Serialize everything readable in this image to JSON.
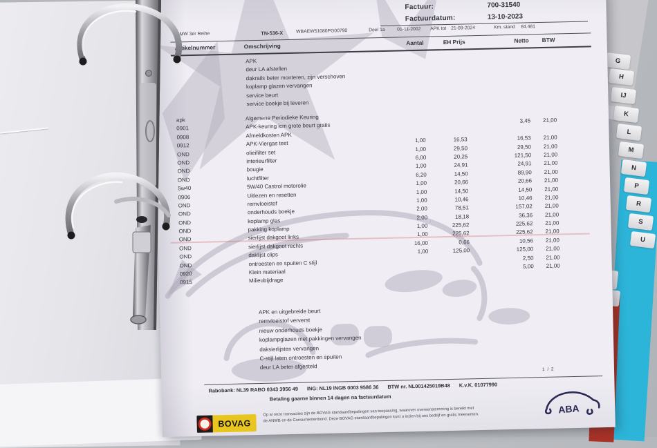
{
  "invoice": {
    "header": {
      "factuur_label": "Factuur:",
      "factuur_number": "700-31540",
      "factuurdatum_label": "Factuurdatum:",
      "factuurdatum": "13-10-2023"
    },
    "vehicle": {
      "model": "BMW 3er Reihe",
      "plate": "TN-536-X",
      "vin": "WBAEW51080PG00790",
      "deel_label": "Deel 1a",
      "deel_date": "01-11-2002",
      "apk_label": "APK tot",
      "apk_date": "21-09-2024",
      "km_label": "Km. stand",
      "km_value": "84.481"
    },
    "columns": {
      "artikelnummer": "Artikelnummer",
      "omschrijving": "Omschrijving",
      "aantal": "Aantal",
      "eh_prijs": "EH Prijs",
      "netto": "Netto",
      "btw": "BTW"
    },
    "intro_lines": [
      "APK",
      "deur LA afstellen",
      "dakrails beter monteren, zijn verschoven",
      "koplamp glazen vervangen",
      "service beurt",
      "service boekje bij leveren"
    ],
    "items": [
      {
        "nr": "apk",
        "desc": "Algemene Periodieke Keuring",
        "qty": "",
        "price": "",
        "netto": "",
        "btw": ""
      },
      {
        "nr": "0901",
        "desc": "APK-keuring icm grote beurt gratis",
        "qty": "",
        "price": "",
        "netto": "3,45",
        "btw": "21,00"
      },
      {
        "nr": "0908",
        "desc": "Afmeldkosten APK",
        "qty": "",
        "price": "",
        "netto": "",
        "btw": ""
      },
      {
        "nr": "0912",
        "desc": "APK-Viergas test",
        "qty": "1,00",
        "price": "16,53",
        "netto": "16,53",
        "btw": "21,00"
      },
      {
        "nr": "OND",
        "desc": "olieifilter set",
        "qty": "1,00",
        "price": "29,50",
        "netto": "29,50",
        "btw": "21,00"
      },
      {
        "nr": "OND",
        "desc": "interieurfilter",
        "qty": "6,00",
        "price": "20,25",
        "netto": "121,50",
        "btw": "21,00"
      },
      {
        "nr": "OND",
        "desc": "bougie",
        "qty": "1,00",
        "price": "24,91",
        "netto": "24,91",
        "btw": "21,00"
      },
      {
        "nr": "OND",
        "desc": "luchtfilter",
        "qty": "6,20",
        "price": "14,50",
        "netto": "89,90",
        "btw": "21,00"
      },
      {
        "nr": "5w40",
        "desc": "5W/40 Castrol motorolie",
        "qty": "1,00",
        "price": "20,66",
        "netto": "20,66",
        "btw": "21,00"
      },
      {
        "nr": "0906",
        "desc": "Uitlezen en resetten",
        "qty": "1,00",
        "price": "14,50",
        "netto": "14,50",
        "btw": "21,00"
      },
      {
        "nr": "OND",
        "desc": "remvloeistof",
        "qty": "1,00",
        "price": "10,46",
        "netto": "10,46",
        "btw": "21,00"
      },
      {
        "nr": "OND",
        "desc": "onderhouds boekje",
        "qty": "2,00",
        "price": "78,51",
        "netto": "157,02",
        "btw": "21,00"
      },
      {
        "nr": "OND",
        "desc": "koplamp glas",
        "qty": "2,00",
        "price": "18,18",
        "netto": "36,36",
        "btw": "21,00"
      },
      {
        "nr": "OND",
        "desc": "pakking koplamp",
        "qty": "1,00",
        "price": "225,62",
        "netto": "225,62",
        "btw": "21,00"
      },
      {
        "nr": "OND",
        "desc": "sierlijst dakgoot links",
        "qty": "1,00",
        "price": "225,62",
        "netto": "225,62",
        "btw": "21,00"
      },
      {
        "nr": "OND",
        "desc": "sierlijst dakgoot rechts",
        "qty": "16,00",
        "price": "0,66",
        "netto": "10,56",
        "btw": "21,00"
      },
      {
        "nr": "OND",
        "desc": "daklijst clips",
        "qty": "1,00",
        "price": "125,00",
        "netto": "125,00",
        "btw": "21,00"
      },
      {
        "nr": "OND",
        "desc": "ontroesten en spuiten C stijl",
        "qty": "",
        "price": "",
        "netto": "2,50",
        "btw": "21,00"
      },
      {
        "nr": "0920",
        "desc": "Klein materiaal",
        "qty": "",
        "price": "",
        "netto": "5,00",
        "btw": "21,00"
      },
      {
        "nr": "0915",
        "desc": "Milieubijdrage",
        "qty": "",
        "price": "",
        "netto": "",
        "btw": ""
      }
    ],
    "summary_lines": [
      "APK en uitgebreide beurt",
      "remvloeistof ververst",
      "nieuw onderhouds boekje",
      "koplampglazen met pakkingen vervangen",
      "daksierlijsten vervangen",
      "C-stijl laten ontroesten en spuiten",
      "deur LA beter afgesteld"
    ],
    "page_indicator": "1 / 2",
    "footer": {
      "bank_segments": [
        "Rabobank: NL39 RABO 0343 3956 49",
        "ING: NL19 INGB 0003 9586 36",
        "BTW nr. NL001425019B48",
        "K.v.K. 01077990"
      ],
      "payment_line": "Betaling gaarne binnen 14 dagen na factuurdatum",
      "bovag_label": "BOVAG",
      "terms_line1": "Op al onze transacties zijn de BOVAG standaardbepalingen van toepassing, waarover overeenstemming is bereikt met",
      "terms_line2": "de ANWB en de Consumentenbond. Deze BOVAG standaardbepalingen kunt u inzien bij ons bedrijf en gratis meenemen.",
      "aba_label": "ABA"
    },
    "tabs": [
      "G",
      "H",
      "IJ",
      "K",
      "L",
      "M",
      "N",
      "P",
      "R",
      "S",
      "U"
    ]
  },
  "colors": {
    "paper": "#f0eef4",
    "desk": "#b7babe",
    "ink": "#34343e",
    "watermark": "#aba7b7",
    "cyan_divider": "#2cb5d9",
    "red_divider": "#a93226",
    "tab_blue_marker": "#1e6fd8",
    "bovag_yellow": "#e9c51f",
    "bovag_red": "#cf2b20",
    "aba_navy": "#2b2b56"
  }
}
